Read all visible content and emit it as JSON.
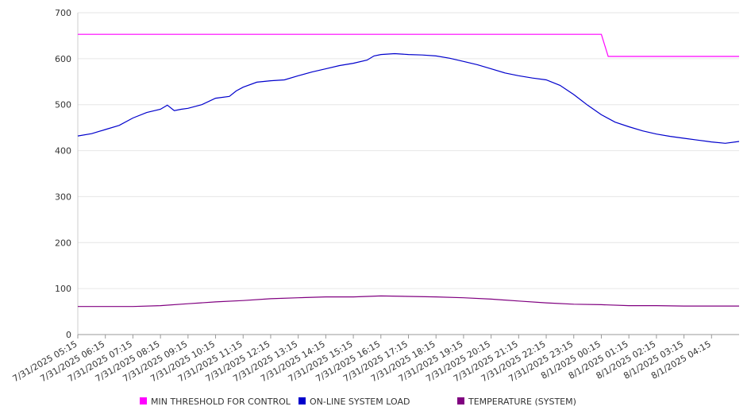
{
  "chart_data": {
    "type": "line",
    "ylim": [
      0,
      700
    ],
    "yticks": [
      0,
      100,
      200,
      300,
      400,
      500,
      600,
      700
    ],
    "grid": true,
    "legend_placement": "bottom",
    "x_tick_labels": [
      "7/31/2025 05:15",
      "7/31/2025 06:15",
      "7/31/2025 07:15",
      "7/31/2025 08:15",
      "7/31/2025 09:15",
      "7/31/2025 10:15",
      "7/31/2025 11:15",
      "7/31/2025 12:15",
      "7/31/2025 13:15",
      "7/31/2025 14:15",
      "7/31/2025 15:15",
      "7/31/2025 16:15",
      "7/31/2025 17:15",
      "7/31/2025 18:15",
      "7/31/2025 19:15",
      "7/31/2025 20:15",
      "7/31/2025 21:15",
      "7/31/2025 22:15",
      "7/31/2025 23:15",
      "8/1/2025 00:15",
      "8/1/2025 01:15",
      "8/1/2025 02:15",
      "8/1/2025 03:15",
      "8/1/2025 04:15"
    ],
    "x_start": "7/31/2025 05:15",
    "x_end": "8/1/2025 05:15",
    "series": [
      {
        "name": "MIN THRESHOLD FOR CONTROL",
        "color": "#ff00ff",
        "points": [
          [
            "7/31/2025 05:15",
            653
          ],
          [
            "8/1/2025 00:15",
            653
          ],
          [
            "8/1/2025 00:30",
            605
          ],
          [
            "8/1/2025 05:15",
            605
          ]
        ]
      },
      {
        "name": "ON-LINE SYSTEM LOAD",
        "color": "#0000cc",
        "points": [
          [
            "7/31/2025 05:15",
            432
          ],
          [
            "7/31/2025 05:45",
            437
          ],
          [
            "7/31/2025 06:15",
            446
          ],
          [
            "7/31/2025 06:45",
            455
          ],
          [
            "7/31/2025 07:15",
            471
          ],
          [
            "7/31/2025 07:45",
            483
          ],
          [
            "7/31/2025 08:15",
            490
          ],
          [
            "7/31/2025 08:30",
            499
          ],
          [
            "7/31/2025 08:45",
            487
          ],
          [
            "7/31/2025 09:00",
            490
          ],
          [
            "7/31/2025 09:15",
            492
          ],
          [
            "7/31/2025 09:45",
            500
          ],
          [
            "7/31/2025 10:15",
            514
          ],
          [
            "7/31/2025 10:45",
            518
          ],
          [
            "7/31/2025 11:00",
            530
          ],
          [
            "7/31/2025 11:15",
            538
          ],
          [
            "7/31/2025 11:45",
            549
          ],
          [
            "7/31/2025 12:15",
            552
          ],
          [
            "7/31/2025 12:45",
            554
          ],
          [
            "7/31/2025 13:15",
            563
          ],
          [
            "7/31/2025 13:45",
            571
          ],
          [
            "7/31/2025 14:15",
            578
          ],
          [
            "7/31/2025 14:45",
            585
          ],
          [
            "7/31/2025 15:15",
            590
          ],
          [
            "7/31/2025 15:45",
            597
          ],
          [
            "7/31/2025 16:00",
            606
          ],
          [
            "7/31/2025 16:15",
            609
          ],
          [
            "7/31/2025 16:45",
            611
          ],
          [
            "7/31/2025 17:15",
            609
          ],
          [
            "7/31/2025 17:45",
            608
          ],
          [
            "7/31/2025 18:15",
            606
          ],
          [
            "7/31/2025 18:45",
            601
          ],
          [
            "7/31/2025 19:15",
            594
          ],
          [
            "7/31/2025 19:45",
            587
          ],
          [
            "7/31/2025 20:15",
            578
          ],
          [
            "7/31/2025 20:45",
            569
          ],
          [
            "7/31/2025 21:15",
            563
          ],
          [
            "7/31/2025 21:45",
            558
          ],
          [
            "7/31/2025 22:15",
            554
          ],
          [
            "7/31/2025 22:45",
            542
          ],
          [
            "7/31/2025 23:15",
            522
          ],
          [
            "7/31/2025 23:45",
            499
          ],
          [
            "8/1/2025 00:15",
            478
          ],
          [
            "8/1/2025 00:45",
            462
          ],
          [
            "8/1/2025 01:15",
            452
          ],
          [
            "8/1/2025 01:45",
            443
          ],
          [
            "8/1/2025 02:15",
            436
          ],
          [
            "8/1/2025 02:45",
            431
          ],
          [
            "8/1/2025 03:15",
            427
          ],
          [
            "8/1/2025 03:45",
            423
          ],
          [
            "8/1/2025 04:15",
            419
          ],
          [
            "8/1/2025 04:45",
            416
          ],
          [
            "8/1/2025 05:15",
            420
          ]
        ]
      },
      {
        "name": "TEMPERATURE (SYSTEM)",
        "color": "#800080",
        "points": [
          [
            "7/31/2025 05:15",
            61
          ],
          [
            "7/31/2025 06:15",
            61
          ],
          [
            "7/31/2025 07:15",
            61
          ],
          [
            "7/31/2025 08:15",
            63
          ],
          [
            "7/31/2025 09:15",
            67
          ],
          [
            "7/31/2025 10:15",
            71
          ],
          [
            "7/31/2025 11:15",
            74
          ],
          [
            "7/31/2025 12:15",
            78
          ],
          [
            "7/31/2025 13:15",
            80
          ],
          [
            "7/31/2025 14:15",
            82
          ],
          [
            "7/31/2025 15:15",
            82
          ],
          [
            "7/31/2025 16:15",
            84
          ],
          [
            "7/31/2025 17:15",
            83
          ],
          [
            "7/31/2025 18:15",
            82
          ],
          [
            "7/31/2025 19:15",
            80
          ],
          [
            "7/31/2025 20:15",
            77
          ],
          [
            "7/31/2025 21:15",
            73
          ],
          [
            "7/31/2025 22:15",
            69
          ],
          [
            "7/31/2025 23:15",
            66
          ],
          [
            "8/1/2025 00:15",
            65
          ],
          [
            "8/1/2025 01:15",
            63
          ],
          [
            "8/1/2025 02:15",
            63
          ],
          [
            "8/1/2025 03:15",
            62
          ],
          [
            "8/1/2025 04:15",
            62
          ],
          [
            "8/1/2025 05:15",
            62
          ]
        ]
      }
    ]
  }
}
